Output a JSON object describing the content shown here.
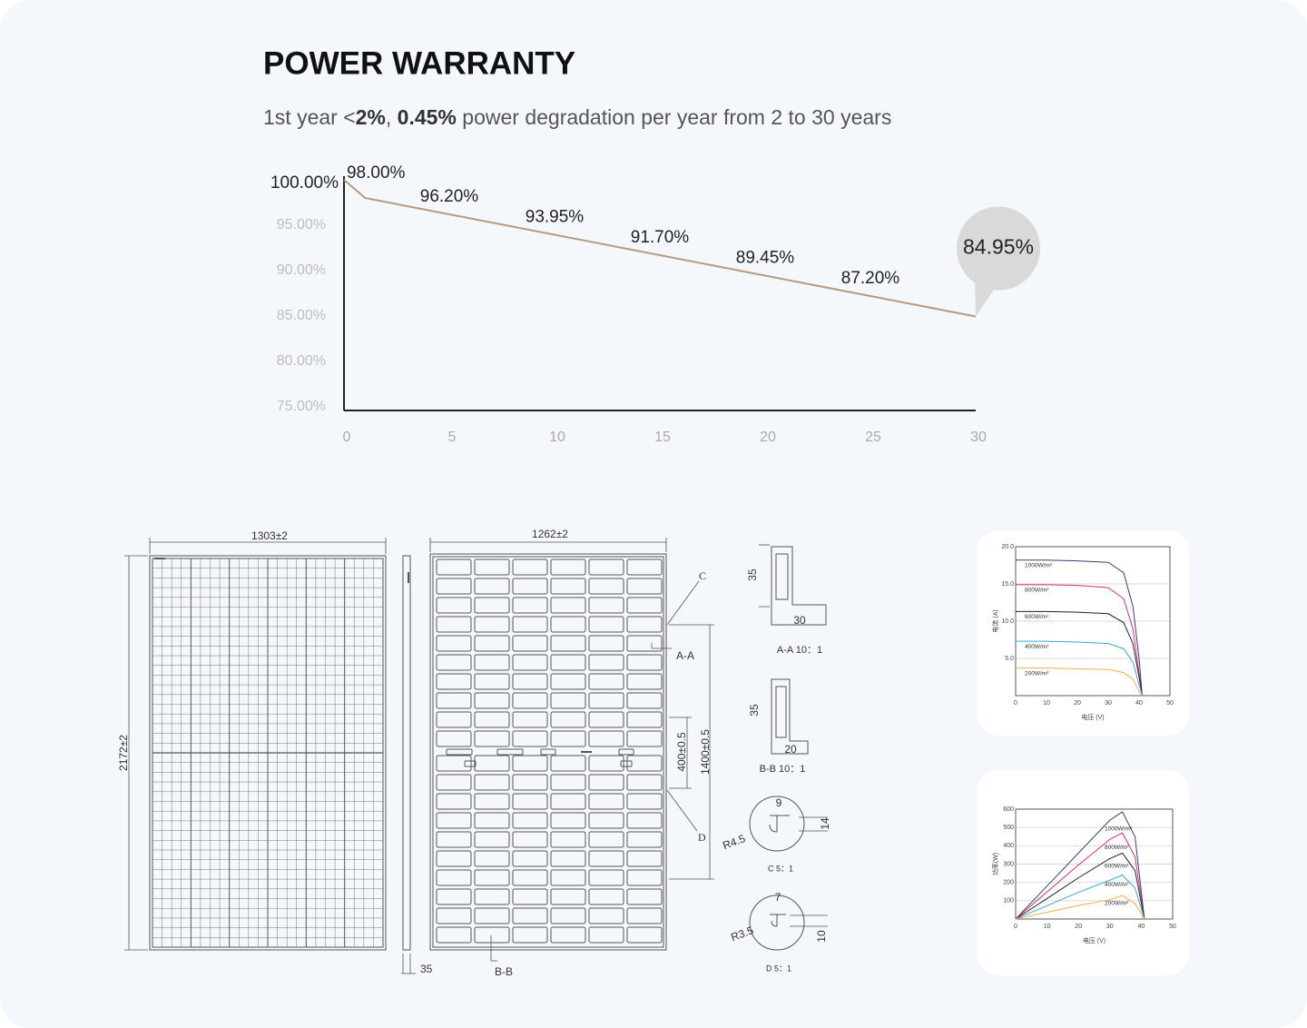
{
  "header": {
    "title": "POWER WARRANTY",
    "subtitle_parts": [
      "1st year <",
      "2%",
      ", ",
      "0.45%",
      " power degradation per year from 2 to 30 years"
    ],
    "subtitle_bold": [
      false,
      true,
      false,
      true,
      false
    ]
  },
  "chart_data": [
    {
      "type": "line",
      "x": [
        0,
        1,
        5,
        10,
        15,
        20,
        25,
        30
      ],
      "values": [
        100,
        98,
        96.2,
        93.95,
        91.7,
        89.45,
        87.2,
        84.95
      ],
      "value_labels": [
        "100.00%",
        "98.00%",
        "96.20%",
        "93.95%",
        "91.70%",
        "89.45%",
        "87.20%",
        "84.95%"
      ],
      "color": "#b59b80",
      "xlim": [
        0,
        30
      ],
      "ylim": [
        75,
        100
      ],
      "xticks": [
        0,
        5,
        10,
        15,
        20,
        25,
        30
      ],
      "yticks": [
        {
          "value": 75,
          "label": "75.00%"
        },
        {
          "value": 80,
          "label": "80.00%"
        },
        {
          "value": 85,
          "label": "85.00%"
        },
        {
          "value": 90,
          "label": "90.00%"
        },
        {
          "value": 95,
          "label": "95.00%"
        }
      ],
      "grid": false
    },
    {
      "type": "line",
      "x_label": "电压 (V)",
      "y_label": "电流 (A)",
      "x": [
        0,
        10,
        20,
        30,
        35,
        38,
        40,
        41
      ],
      "series": [
        {
          "name": "1000W/m²",
          "color": "#3c3c6e",
          "values": [
            18.2,
            18.2,
            18.1,
            17.9,
            16.5,
            12,
            5,
            0
          ]
        },
        {
          "name": "800W/m²",
          "color": "#d42f7c",
          "values": [
            14.9,
            14.9,
            14.8,
            14.5,
            13,
            9,
            3,
            0
          ]
        },
        {
          "name": "600W/m²",
          "color": "#222222",
          "values": [
            11.3,
            11.3,
            11.2,
            11,
            9.8,
            7,
            2.5,
            0
          ]
        },
        {
          "name": "400W/m²",
          "color": "#3aa8d8",
          "values": [
            7.3,
            7.3,
            7.2,
            7,
            6.3,
            4.5,
            1.5,
            0
          ]
        },
        {
          "name": "200W/m²",
          "color": "#f0b050",
          "values": [
            3.7,
            3.7,
            3.6,
            3.5,
            3.1,
            2.2,
            0.6,
            0
          ]
        }
      ],
      "xlim": [
        0,
        50
      ],
      "ylim": [
        0,
        20
      ],
      "xticks": [
        0,
        10,
        20,
        30,
        40,
        50
      ],
      "yticks": [
        {
          "value": 5,
          "label": "5.0"
        },
        {
          "value": 10,
          "label": "10.0"
        },
        {
          "value": 15,
          "label": "15.0"
        },
        {
          "value": 20,
          "label": "20.0"
        }
      ],
      "grid": true
    },
    {
      "type": "line",
      "x_label": "电压 (V)",
      "y_label": "功率(W)",
      "x": [
        0,
        10,
        20,
        30,
        34,
        38,
        41
      ],
      "series": [
        {
          "name": "1000W/m²",
          "color": "#3c3c6e",
          "values": [
            0,
            180,
            360,
            540,
            585,
            450,
            0
          ]
        },
        {
          "name": "800W/m²",
          "color": "#d42f7c",
          "values": [
            0,
            148,
            295,
            435,
            470,
            340,
            0
          ]
        },
        {
          "name": "600W/m²",
          "color": "#222222",
          "values": [
            0,
            112,
            225,
            330,
            360,
            265,
            0
          ]
        },
        {
          "name": "400W/m²",
          "color": "#3aa8d8",
          "values": [
            0,
            73,
            146,
            212,
            240,
            170,
            0
          ]
        },
        {
          "name": "200W/m²",
          "color": "#f0b050",
          "values": [
            0,
            37,
            74,
            105,
            128,
            85,
            0
          ]
        }
      ],
      "xlim": [
        0,
        50
      ],
      "ylim": [
        0,
        600
      ],
      "xticks": [
        0,
        10,
        20,
        30,
        40,
        50
      ],
      "yticks": [
        100,
        200,
        300,
        400,
        500,
        600
      ],
      "grid": true
    }
  ],
  "drawing": {
    "front_width": "1303±2",
    "back_width": "1262±2",
    "height": "2172±2",
    "frame_depth": "35",
    "section_bb": "B-B",
    "section_aa": "A-A",
    "detail_c": "C",
    "detail_d": "D",
    "mount_400": "400±0.5",
    "mount_1400": "1400±0.5",
    "aa_height": "35",
    "aa_width": "30",
    "aa_caption": "A-A 10：1",
    "bb_height": "35",
    "bb_width": "20",
    "bb_caption": "B-B 10：1",
    "c_width": "9",
    "c_height": "14",
    "c_radius": "R4.5",
    "c_caption": "C 5：1",
    "d_width": "7",
    "d_height": "10",
    "d_radius": "R3.5",
    "d_caption": "D 5：1"
  }
}
